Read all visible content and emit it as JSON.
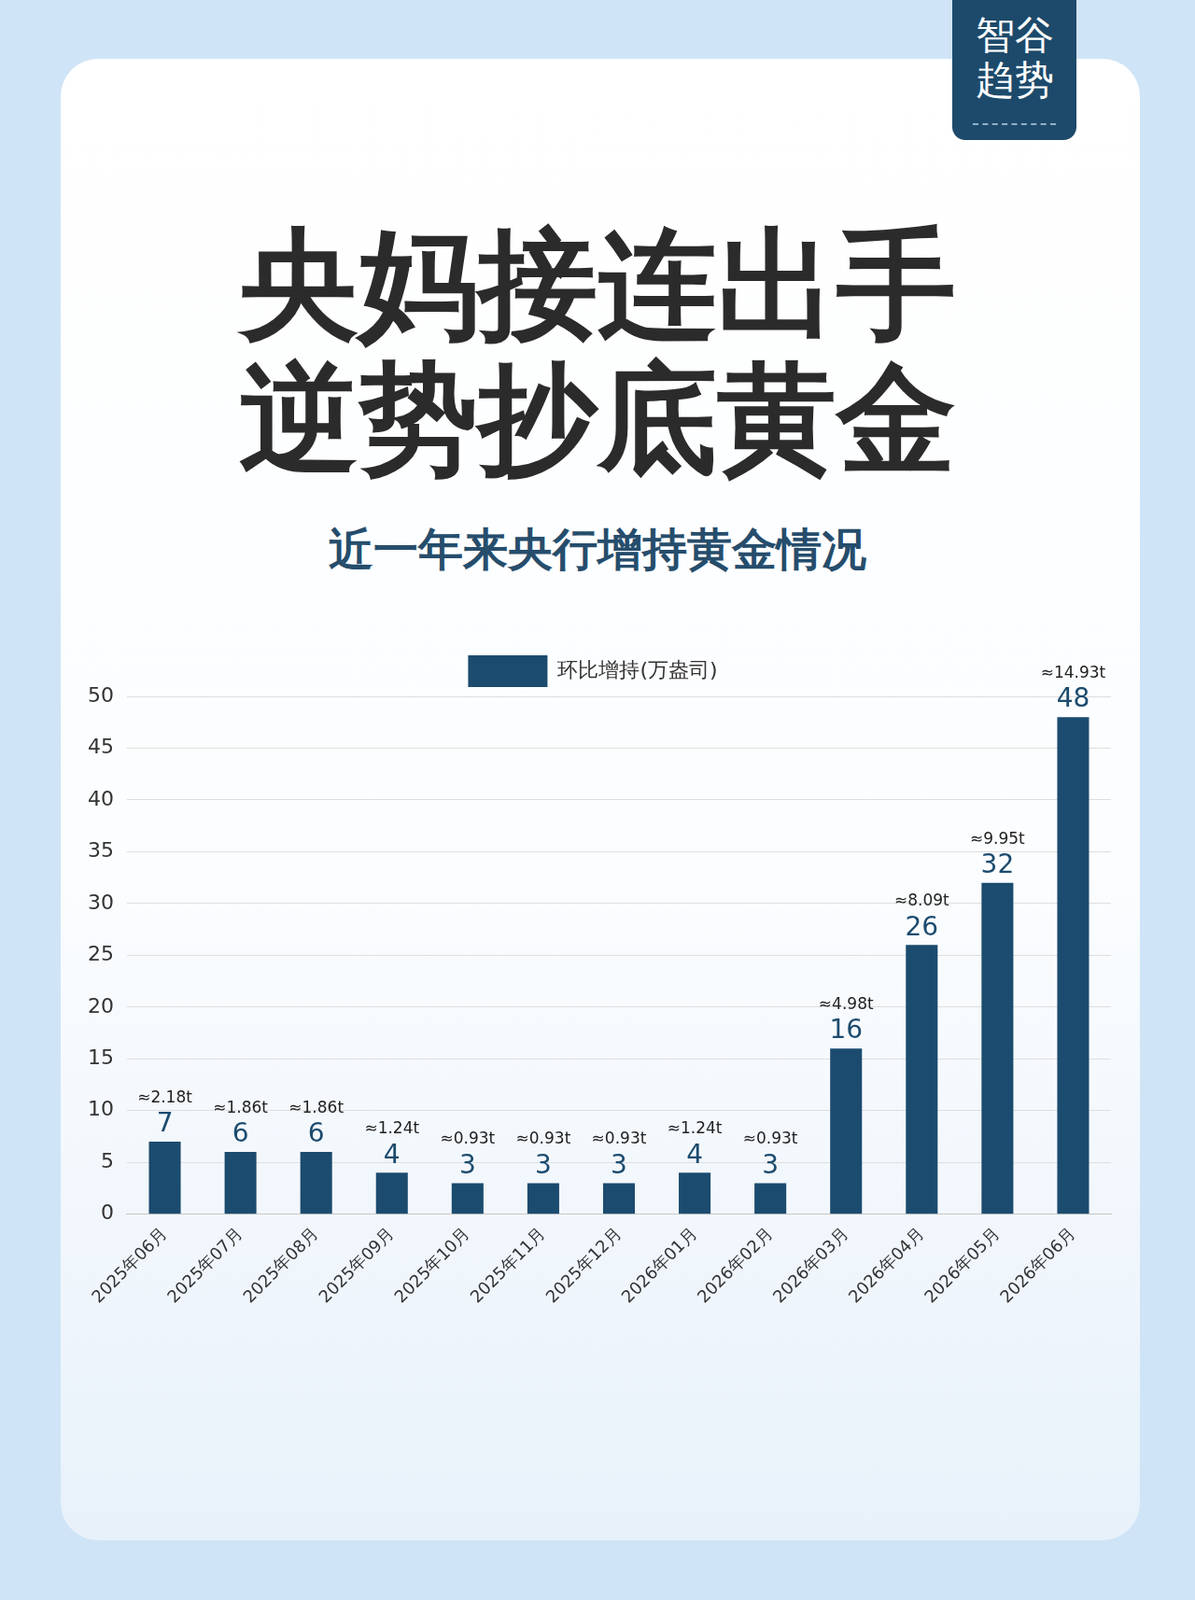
{
  "chart_data": {
    "type": "bar",
    "brand": "智谷趋势",
    "title": "央妈接连出手逆势抄底黄金",
    "subtitle": "近一年来央行增持黄金情况",
    "categories": [
      "2025年06月",
      "2025年07月",
      "2025年08月",
      "2025年09月",
      "2025年10月",
      "2025年11月",
      "2025年12月",
      "2026年01月",
      "2026年02月",
      "2026年03月",
      "2026年04月",
      "2026年05月",
      "2026年06月"
    ],
    "series": [
      {
        "name": "环比增持(万盎司)",
        "color": "#1b4b6e",
        "values": [
          7,
          6,
          6,
          4,
          3,
          3,
          3,
          4,
          3,
          16,
          26,
          32,
          48
        ]
      }
    ],
    "annotations": [
      "≈2.18t",
      "≈1.86t",
      "≈1.86t",
      "≈1.24t",
      "≈0.93t",
      "≈0.93t",
      "≈0.93t",
      "≈1.24t",
      "≈0.93t",
      "≈4.98t",
      "≈8.09t",
      "≈9.95t",
      "≈14.93t"
    ],
    "ylim": [
      0,
      50
    ],
    "yticks": [
      0,
      5,
      10,
      15,
      20,
      25,
      30,
      35,
      40,
      45,
      50
    ],
    "grid": true,
    "legend": "top",
    "data_labels": true
  }
}
